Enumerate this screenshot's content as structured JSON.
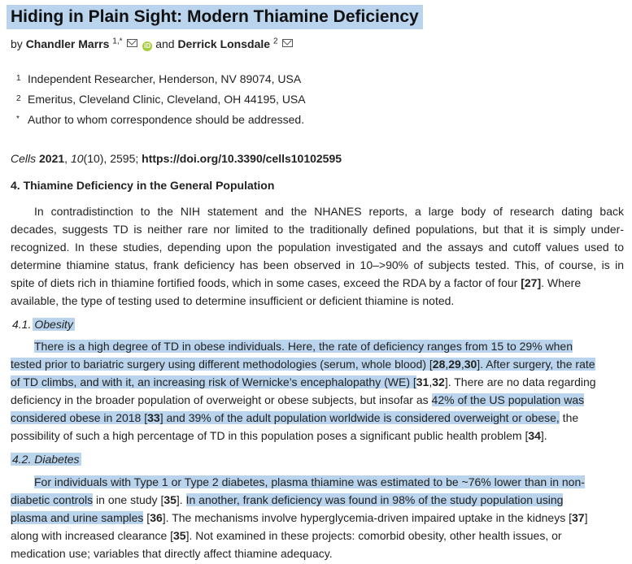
{
  "title": "Hiding in Plain Sight: Modern Thiamine Deficiency",
  "byline": {
    "by": "by",
    "author1": "Chandler Marrs",
    "author1_sup": "1,*",
    "and": "and",
    "author2": "Derrick Lonsdale",
    "author2_sup": "2"
  },
  "affiliations": [
    {
      "mark": "1",
      "text": "Independent Researcher, Henderson, NV 89074, USA"
    },
    {
      "mark": "2",
      "text": "Emeritus, Cleveland Clinic, Cleveland, OH 44195, USA"
    },
    {
      "mark": "*",
      "text": "Author to whom correspondence should be addressed."
    }
  ],
  "citation": {
    "journal": "Cells",
    "year": "2021",
    "volume": "10",
    "issue": "(10), 2595;",
    "doi": "https://doi.org/10.3390/cells10102595"
  },
  "section4": {
    "heading": "4. Thiamine Deficiency in the General Population",
    "lines": [
      "In contradistinction to the NIH statement and the NHANES reports, a large body of research dating back",
      "decades, suggests TD is neither rare nor limited to the traditionally defined populations, but that it is simply under-",
      "recognized. In these studies, depending upon the population investigated and the assays and cutoff values used to",
      "determine thiamine status, frank deficiency has been observed in 10–>90% of subjects tested. This, of course, is in",
      "spite of diets rich in thiamine fortified foods, which in some cases, exceed the RDA by a factor of four",
      "available, the type of testing used to determine insufficient or deficient thiamine is noted."
    ],
    "ref27": "[27]",
    "where": ". Where"
  },
  "obesity": {
    "num": "4.1.",
    "heading": "Obesity",
    "l1": "There is a high degree of TD in obese individuals. Here, the rate of deficiency ranges from 15 to 29% when",
    "l2a": "tested prior to bariatric surgery using different methodologies (serum, whole blood) [",
    "r28": "28",
    "r29": "29",
    "r30": "30",
    "l2b": "]. After surgery, the rate",
    "l3a": "of TD climbs, and with it, an increasing risk of Wernicke’s encephalopathy (WE) [",
    "r31": "31",
    "r32": "32",
    "l3b": "]. There are no data regarding",
    "l4a": "deficiency in the broader population of overweight or obese subjects, but insofar as ",
    "l4b": "42% of the US population was",
    "l5a": "considered obese in 2018 [",
    "r33": "33",
    "l5b": "] and 39% of the adult population worldwide is considered overweight or obese,",
    "l5c": " the",
    "l6a": "possibility of such a high percentage of TD in this population poses a significant public health problem [",
    "r34": "34",
    "l6b": "]."
  },
  "diabetes": {
    "num": "4.2.",
    "heading": "Diabetes",
    "l1": "For individuals with Type 1 or Type 2 diabetes, plasma thiamine was estimated to be ~76% lower than in non-",
    "l2a": "diabetic controls",
    "l2b": " in one study [",
    "r35": "35",
    "l2c": "]. ",
    "l2d": "In another, frank deficiency was found in 98% of the study population using",
    "l3a": "plasma and urine samples",
    "l3b": " [",
    "r36": "36",
    "l3c": "]. The mechanisms involve hyperglycemia-driven impaired uptake in the kidneys [",
    "r37": "37",
    "l3d": "]",
    "l4a": "along with increased clearance [",
    "r35b": "35",
    "l4b": "]. Not examined in these projects: comorbid obesity, other health issues, or",
    "l5": "medication use; variables that directly affect thiamine adequacy."
  },
  "colors": {
    "highlight": "#b9d4ec",
    "orcid": "#a6ce39"
  }
}
